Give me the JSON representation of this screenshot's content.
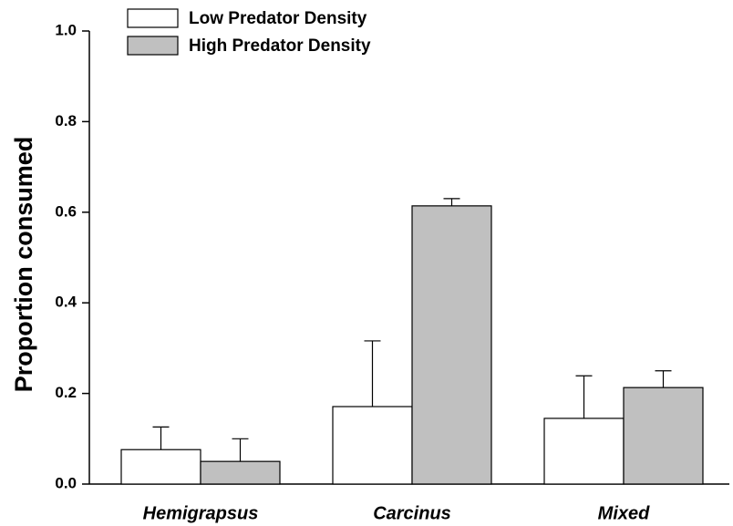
{
  "chart_data": {
    "type": "bar",
    "y_label": "Proportion consumed",
    "categories": [
      "Hemigrapsus",
      "Carcinus",
      "Mixed"
    ],
    "series": [
      {
        "name": "Low Predator Density",
        "color": "#ffffff",
        "values": [
          0.076,
          0.171,
          0.145
        ],
        "errors": [
          0.05,
          0.145,
          0.094
        ]
      },
      {
        "name": "High Predator Density",
        "color": "#c0c0c0",
        "values": [
          0.05,
          0.614,
          0.213
        ],
        "errors": [
          0.05,
          0.016,
          0.037
        ]
      }
    ],
    "ylim": [
      0,
      1.0
    ],
    "yticks": [
      {
        "value": 0,
        "label": "0.0"
      },
      0.2,
      0.4,
      0.6,
      0.8,
      {
        "value": 1.0,
        "label": "1.0"
      }
    ],
    "legend": "top-left"
  }
}
